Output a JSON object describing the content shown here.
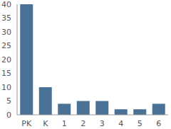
{
  "chart_data": {
    "type": "bar",
    "categories": [
      "PK",
      "K",
      "1",
      "2",
      "3",
      "4",
      "5",
      "6"
    ],
    "values": [
      40,
      10,
      4,
      5,
      5,
      2,
      2,
      4
    ],
    "color": "#4a7196",
    "ylim": [
      0,
      40
    ],
    "yticks": [
      0,
      5,
      10,
      15,
      20,
      25,
      30,
      35,
      40
    ],
    "grid": false
  }
}
